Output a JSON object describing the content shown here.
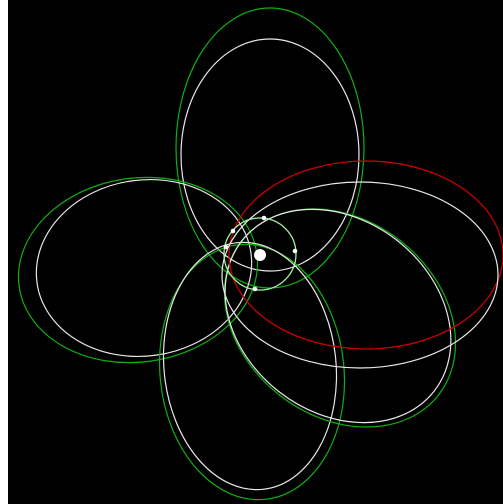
{
  "diagram": {
    "background_color": "#000000",
    "frame_color": "#ffffff",
    "central_body": {
      "name": "central-star",
      "fill": "#ffffff",
      "highlight": "#f2f2f2"
    },
    "orbit_groups": [
      {
        "name": "orbit-top",
        "green": "#10b010",
        "white": "#e8e8e8"
      },
      {
        "name": "orbit-left",
        "green": "#10b010",
        "white": "#e8e8e8"
      },
      {
        "name": "orbit-bottom",
        "green": "#10b010",
        "white": "#e8e8e8"
      },
      {
        "name": "orbit-lower-right",
        "green": "#10b010",
        "white": "#e8e8e8"
      },
      {
        "name": "orbit-right-red",
        "accent": "#c80000",
        "white": "#e8e8e8"
      }
    ],
    "inner_orbit": {
      "name": "inner-orbit",
      "color": "#9ff59f"
    },
    "small_bodies_color": "#ffffff"
  }
}
